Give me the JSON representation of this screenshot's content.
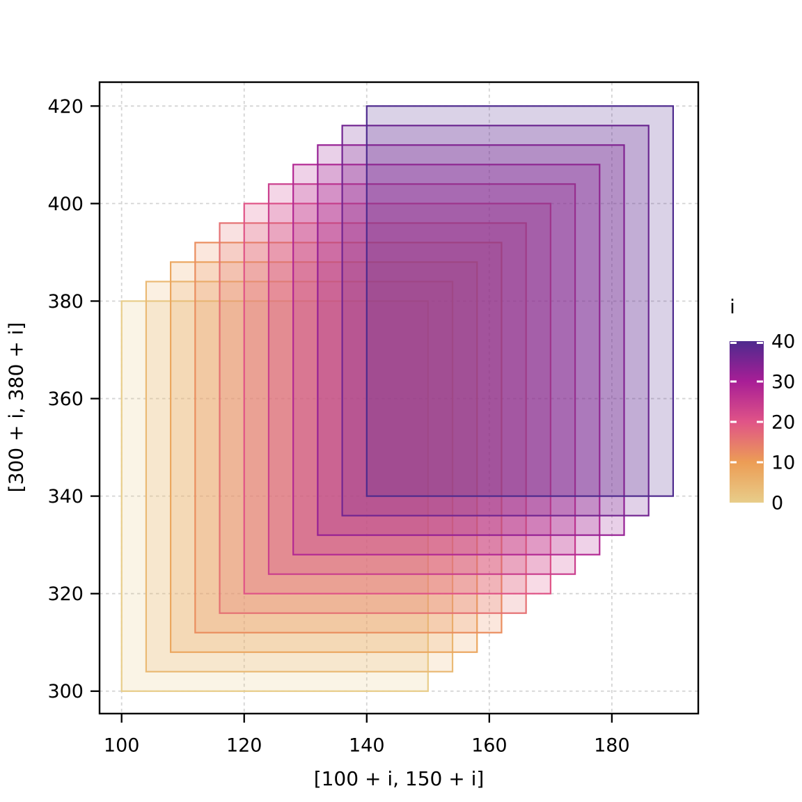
{
  "figure": {
    "background": "#ffffff"
  },
  "chart_data": {
    "type": "rect",
    "title": "",
    "xlabel": "[100 + i, 150 + i]",
    "ylabel": "[300 + i, 380 + i]",
    "x_ticks": [
      100,
      120,
      140,
      160,
      180
    ],
    "y_ticks": [
      300,
      320,
      340,
      360,
      380,
      400,
      420
    ],
    "x_range": [
      96.4,
      194.1
    ],
    "y_range": [
      295.4,
      424.9
    ],
    "grid": true,
    "fill_opacity": 0.21,
    "rect_rule": "for each i: x in [100 + i, 150 + i], y in [300 + i, 380 + i]",
    "rects": [
      {
        "i": 0,
        "x1": 100,
        "x2": 150,
        "y1": 300,
        "y2": 380
      },
      {
        "i": 4,
        "x1": 104,
        "x2": 154,
        "y1": 304,
        "y2": 384
      },
      {
        "i": 8,
        "x1": 108,
        "x2": 158,
        "y1": 308,
        "y2": 388
      },
      {
        "i": 12,
        "x1": 112,
        "x2": 162,
        "y1": 312,
        "y2": 392
      },
      {
        "i": 16,
        "x1": 116,
        "x2": 166,
        "y1": 316,
        "y2": 396
      },
      {
        "i": 20,
        "x1": 120,
        "x2": 170,
        "y1": 320,
        "y2": 400
      },
      {
        "i": 24,
        "x1": 124,
        "x2": 174,
        "y1": 324,
        "y2": 404
      },
      {
        "i": 28,
        "x1": 128,
        "x2": 178,
        "y1": 328,
        "y2": 408
      },
      {
        "i": 32,
        "x1": 132,
        "x2": 182,
        "y1": 332,
        "y2": 412
      },
      {
        "i": 36,
        "x1": 136,
        "x2": 186,
        "y1": 336,
        "y2": 416
      },
      {
        "i": 40,
        "x1": 140,
        "x2": 190,
        "y1": 340,
        "y2": 420
      }
    ],
    "palette_stops": [
      {
        "value": 0,
        "color": "#e8cd8a"
      },
      {
        "value": 10,
        "color": "#ec9d55"
      },
      {
        "value": 20,
        "color": "#e05487"
      },
      {
        "value": 30,
        "color": "#a81e96"
      },
      {
        "value": 40,
        "color": "#4e2a8e"
      }
    ],
    "legend": {
      "title": "i",
      "min": 0,
      "max": 40,
      "ticks": [
        40,
        30,
        20,
        10,
        0
      ],
      "position": "right"
    },
    "colors": {
      "grid": "#d4d4d4",
      "axis": "#000000",
      "text": "#000000",
      "panel_background": "#ffffff"
    }
  }
}
